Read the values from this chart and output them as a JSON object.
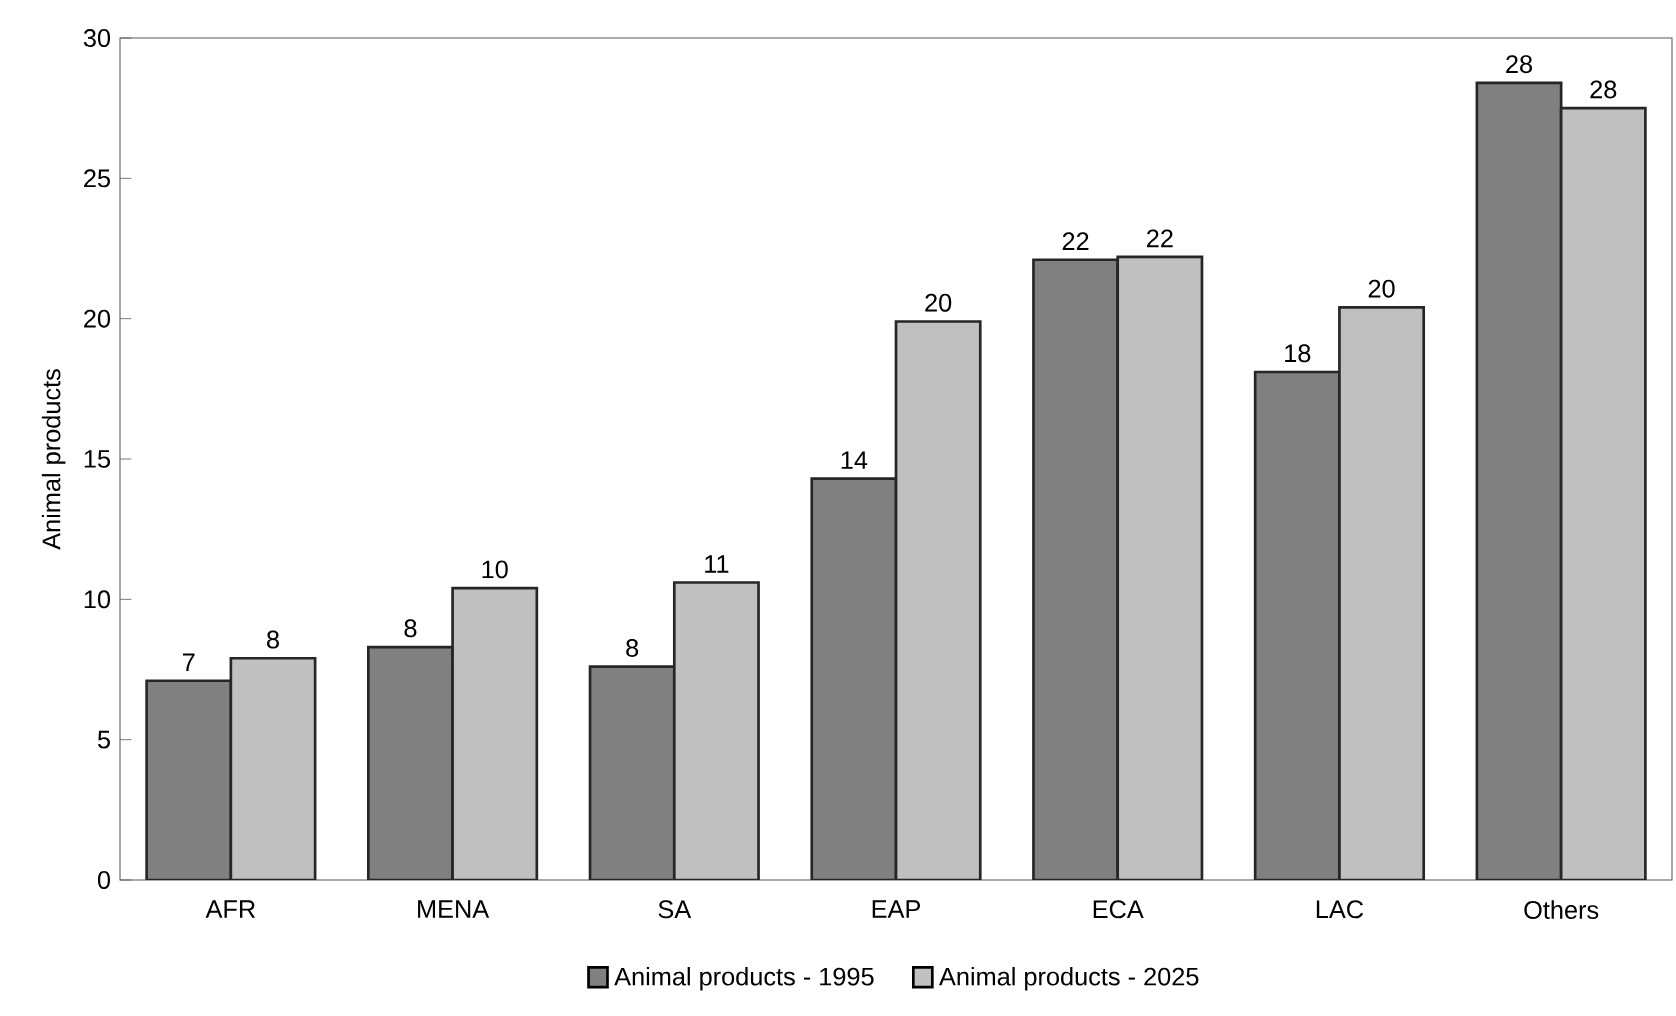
{
  "chart_data": {
    "type": "bar",
    "ylabel": "Animal  products",
    "categories": [
      "AFR",
      "MENA",
      "SA",
      "EAP",
      "ECA",
      "LAC",
      "Others"
    ],
    "series": [
      {
        "name": "Animal products - 1995",
        "color": "#808080",
        "values": [
          7.1,
          8.3,
          7.6,
          14.3,
          22.1,
          18.1,
          28.4
        ],
        "value_labels": [
          "7",
          "8",
          "8",
          "14",
          "22",
          "18",
          "28"
        ]
      },
      {
        "name": "Animal products - 2025",
        "color": "#c0c0c0",
        "values": [
          7.9,
          10.4,
          10.6,
          19.9,
          22.2,
          20.4,
          27.5
        ],
        "value_labels": [
          "8",
          "10",
          "11",
          "20",
          "22",
          "20",
          "28"
        ]
      }
    ],
    "ylim": [
      0,
      30
    ],
    "yticks": [
      0,
      5,
      10,
      15,
      20,
      25,
      30
    ],
    "legend": "bottom"
  }
}
